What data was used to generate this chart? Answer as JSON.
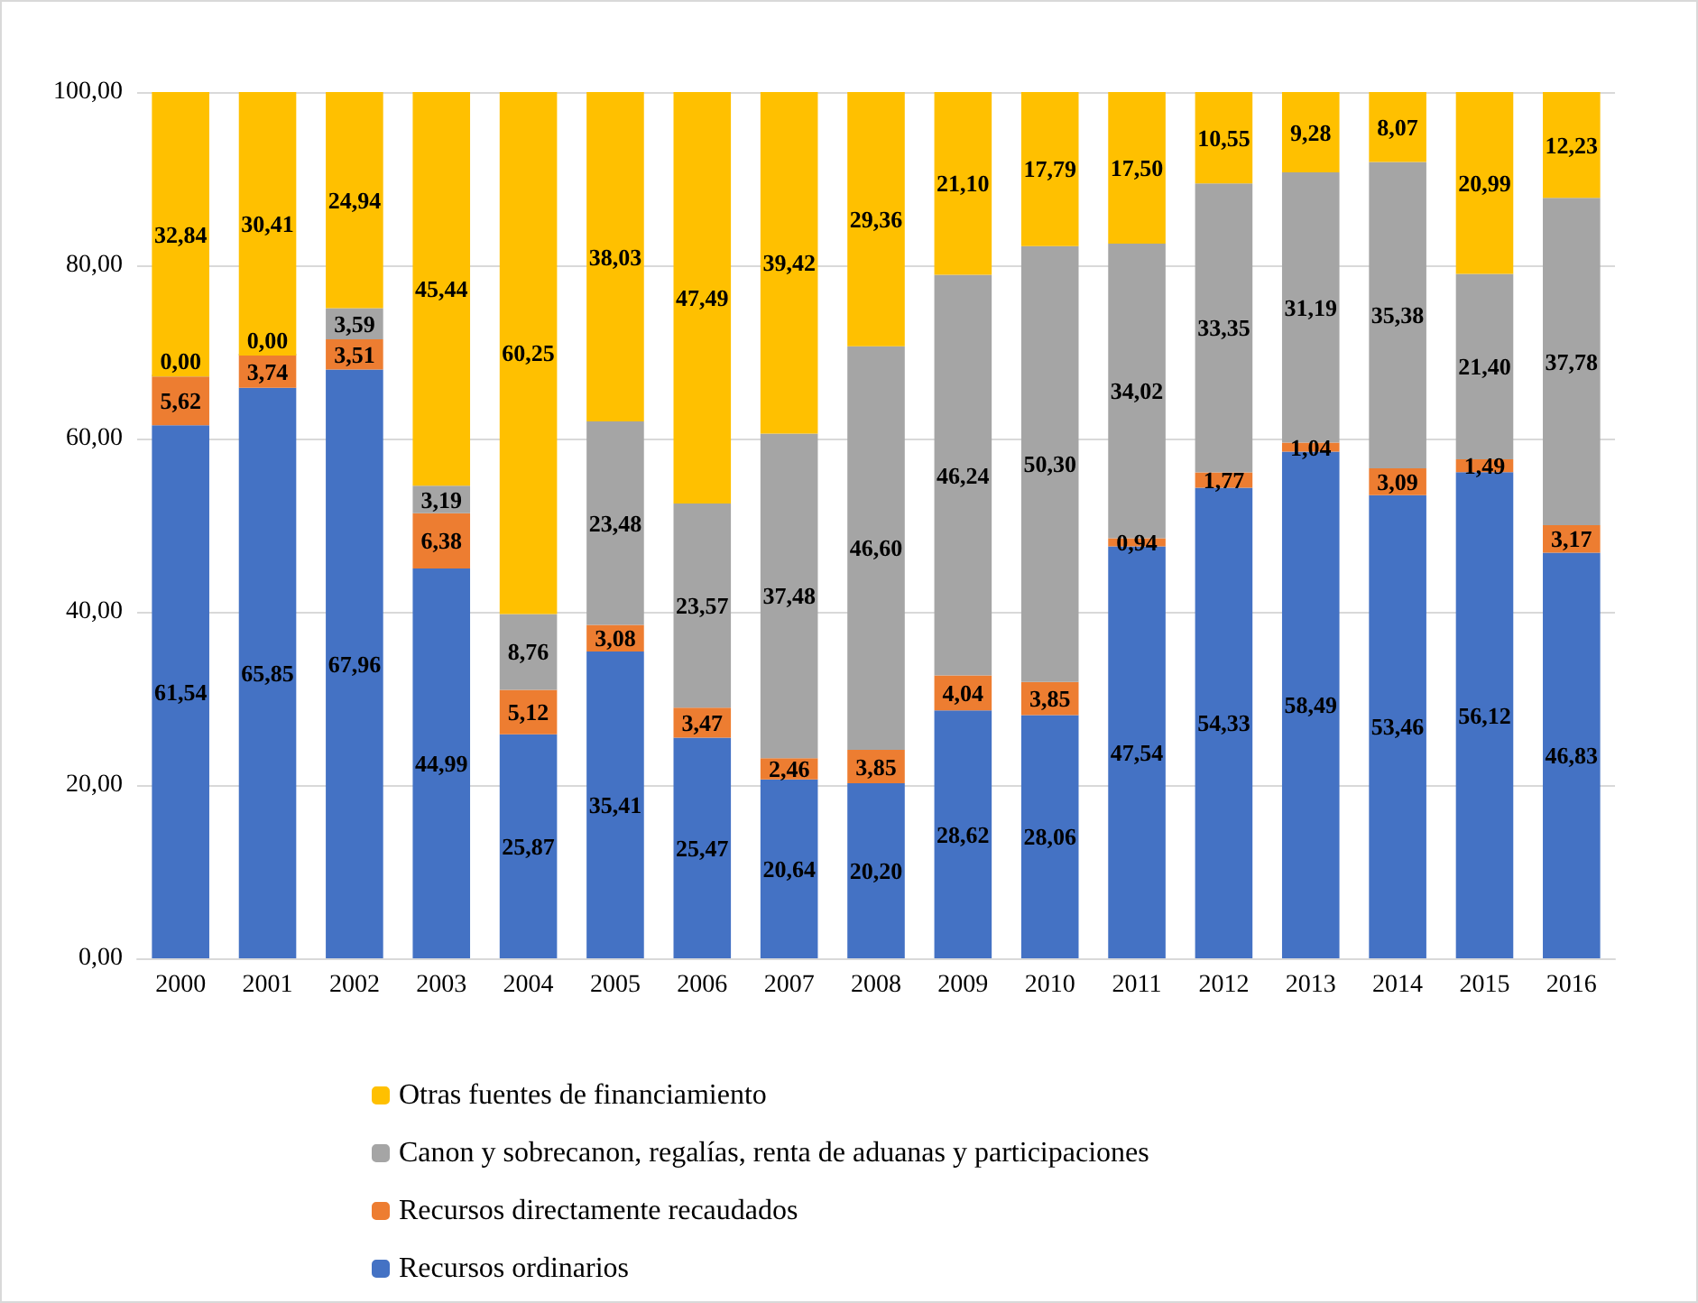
{
  "chart_data": {
    "type": "bar",
    "stacked": true,
    "categories": [
      "2000",
      "2001",
      "2002",
      "2003",
      "2004",
      "2005",
      "2006",
      "2007",
      "2008",
      "2009",
      "2010",
      "2011",
      "2012",
      "2013",
      "2014",
      "2015",
      "2016"
    ],
    "series": [
      {
        "name": "Recursos ordinarios",
        "color": "#4472c4",
        "values": [
          61.54,
          65.85,
          67.96,
          44.99,
          25.87,
          35.41,
          25.47,
          20.64,
          20.2,
          28.62,
          28.06,
          47.54,
          54.33,
          58.49,
          53.46,
          56.12,
          46.83
        ],
        "value_labels": [
          "61,54",
          "65,85",
          "67,96",
          "44,99",
          "25,87",
          "35,41",
          "25,47",
          "20,64",
          "20,20",
          "28,62",
          "28,06",
          "47,54",
          "54,33",
          "58,49",
          "53,46",
          "56,12",
          "46,83"
        ]
      },
      {
        "name": "Recursos directamente recaudados",
        "color": "#ed7d31",
        "values": [
          5.62,
          3.74,
          3.51,
          6.38,
          5.12,
          3.08,
          3.47,
          2.46,
          3.85,
          4.04,
          3.85,
          0.94,
          1.77,
          1.04,
          3.09,
          1.49,
          3.17
        ],
        "value_labels": [
          "5,62",
          "3,74",
          "3,51",
          "6,38",
          "5,12",
          "3,08",
          "3,47",
          "2,46",
          "3,85",
          "4,04",
          "3,85",
          "0,94",
          "1,77",
          "1,04",
          "3,09",
          "1,49",
          "3,17"
        ]
      },
      {
        "name": "Canon y sobrecanon, regalías, renta de aduanas y participaciones",
        "color": "#a5a5a5",
        "values": [
          0.0,
          0.0,
          3.59,
          3.19,
          8.76,
          23.48,
          23.57,
          37.48,
          46.6,
          46.24,
          50.3,
          34.02,
          33.35,
          31.19,
          35.38,
          21.4,
          37.78
        ],
        "value_labels": [
          "0,00",
          "0,00",
          "3,59",
          "3,19",
          "8,76",
          "23,48",
          "23,57",
          "37,48",
          "46,60",
          "46,24",
          "50,30",
          "34,02",
          "33,35",
          "31,19",
          "35,38",
          "21,40",
          "37,78"
        ]
      },
      {
        "name": "Otras fuentes de financiamiento",
        "color": "#ffc000",
        "values": [
          32.84,
          30.41,
          24.94,
          45.44,
          60.25,
          38.03,
          47.49,
          39.42,
          29.36,
          21.1,
          17.79,
          17.5,
          10.55,
          9.28,
          8.07,
          20.99,
          12.23
        ],
        "value_labels": [
          "32,84",
          "30,41",
          "24,94",
          "45,44",
          "60,25",
          "38,03",
          "47,49",
          "39,42",
          "29,36",
          "21,10",
          "17,79",
          "17,50",
          "10,55",
          "9,28",
          "8,07",
          "20,99",
          "12,23"
        ]
      }
    ],
    "ylim": [
      0,
      100
    ],
    "yticks": [
      {
        "value": 0,
        "label": "0,00"
      },
      {
        "value": 20,
        "label": "20,00"
      },
      {
        "value": 40,
        "label": "40,00"
      },
      {
        "value": 60,
        "label": "60,00"
      },
      {
        "value": 80,
        "label": "80,00"
      },
      {
        "value": 100,
        "label": "100,00"
      }
    ],
    "grid": "y",
    "legend": "bottom"
  }
}
